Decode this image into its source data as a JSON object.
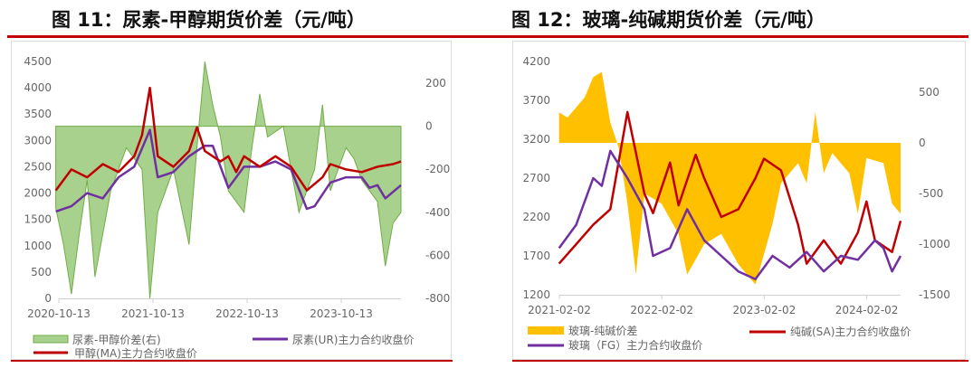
{
  "figures": [
    {
      "title": "图 11：尿素-甲醇期货价差（元/吨）"
    },
    {
      "title": "图 12：玻璃-纯碱期货价差（元/吨）"
    }
  ],
  "colors": {
    "accent_rule": "#c00000",
    "green_fill": "#a9d18e",
    "green_line": "#70ad47",
    "yellow": "#ffc000",
    "red": "#c00000",
    "purple": "#7030a0"
  },
  "chart_data": [
    {
      "type": "line",
      "title": "图 11：尿素-甲醇期货价差（元/吨）",
      "xlim": [
        "2020-10-13",
        "2024-06"
      ],
      "x_ticks": [
        "2020-10-13",
        "2021-10-13",
        "2022-10-13",
        "2023-10-13"
      ],
      "ylim_left": [
        0,
        4500
      ],
      "y_ticks_left": [
        "0",
        "500",
        "1000",
        "1500",
        "2000",
        "2500",
        "3000",
        "3500",
        "4000",
        "4500"
      ],
      "ylim_right": [
        -800,
        200
      ],
      "y_ticks_right": [
        "-800",
        "-600",
        "-400",
        "-200",
        "0",
        "200"
      ],
      "grid": false,
      "legend_position": "bottom",
      "series": [
        {
          "name": "尿素-甲醇价差(右)",
          "type": "area",
          "axis": "right",
          "color": "#a9d18e",
          "points": [
            [
              "2020-10",
              -380
            ],
            [
              "2020-11",
              -550
            ],
            [
              "2020-12",
              -780
            ],
            [
              "2021-01",
              -500
            ],
            [
              "2021-02",
              -250
            ],
            [
              "2021-03",
              -700
            ],
            [
              "2021-05",
              -300
            ],
            [
              "2021-07",
              -100
            ],
            [
              "2021-09",
              -200
            ],
            [
              "2021-10",
              -800
            ],
            [
              "2021-11",
              -400
            ],
            [
              "2022-01",
              -200
            ],
            [
              "2022-03",
              -550
            ],
            [
              "2022-04",
              -100
            ],
            [
              "2022-05",
              300
            ],
            [
              "2022-06",
              100
            ],
            [
              "2022-07",
              -50
            ],
            [
              "2022-08",
              -300
            ],
            [
              "2022-10",
              -400
            ],
            [
              "2022-11",
              -100
            ],
            [
              "2022-12",
              150
            ],
            [
              "2023-01",
              -50
            ],
            [
              "2023-03",
              0
            ],
            [
              "2023-04",
              -200
            ],
            [
              "2023-05",
              -400
            ],
            [
              "2023-07",
              -200
            ],
            [
              "2023-08",
              100
            ],
            [
              "2023-09",
              -300
            ],
            [
              "2023-11",
              -100
            ],
            [
              "2023-12",
              -150
            ],
            [
              "2024-01",
              -250
            ],
            [
              "2024-03",
              -350
            ],
            [
              "2024-04",
              -650
            ],
            [
              "2024-05",
              -450
            ],
            [
              "2024-06",
              -400
            ]
          ]
        },
        {
          "name": "尿素(UR)主力合约收盘价",
          "type": "line",
          "axis": "left",
          "color": "#7030a0",
          "points": [
            [
              "2020-10",
              1650
            ],
            [
              "2020-12",
              1750
            ],
            [
              "2021-02",
              2000
            ],
            [
              "2021-04",
              1900
            ],
            [
              "2021-06",
              2300
            ],
            [
              "2021-08",
              2500
            ],
            [
              "2021-10",
              3200
            ],
            [
              "2021-11",
              2300
            ],
            [
              "2022-01",
              2400
            ],
            [
              "2022-03",
              2700
            ],
            [
              "2022-05",
              2900
            ],
            [
              "2022-06",
              2900
            ],
            [
              "2022-08",
              2100
            ],
            [
              "2022-10",
              2500
            ],
            [
              "2022-12",
              2500
            ],
            [
              "2023-02",
              2600
            ],
            [
              "2023-04",
              2450
            ],
            [
              "2023-06",
              1700
            ],
            [
              "2023-07",
              1750
            ],
            [
              "2023-09",
              2200
            ],
            [
              "2023-11",
              2300
            ],
            [
              "2024-01",
              2300
            ],
            [
              "2024-02",
              2100
            ],
            [
              "2024-03",
              2150
            ],
            [
              "2024-04",
              1900
            ],
            [
              "2024-06",
              2150
            ]
          ]
        },
        {
          "name": "甲醇(MA)主力合约收盘价",
          "type": "line",
          "axis": "left",
          "color": "#c00000",
          "points": [
            [
              "2020-10",
              2050
            ],
            [
              "2020-12",
              2450
            ],
            [
              "2021-02",
              2300
            ],
            [
              "2021-04",
              2550
            ],
            [
              "2021-06",
              2400
            ],
            [
              "2021-08",
              2700
            ],
            [
              "2021-09",
              3100
            ],
            [
              "2021-10",
              4000
            ],
            [
              "2021-11",
              2700
            ],
            [
              "2022-01",
              2500
            ],
            [
              "2022-03",
              2800
            ],
            [
              "2022-04",
              3250
            ],
            [
              "2022-05",
              2800
            ],
            [
              "2022-07",
              2600
            ],
            [
              "2022-08",
              2700
            ],
            [
              "2022-09",
              2400
            ],
            [
              "2022-10",
              2700
            ],
            [
              "2022-12",
              2500
            ],
            [
              "2023-02",
              2700
            ],
            [
              "2023-04",
              2500
            ],
            [
              "2023-06",
              2050
            ],
            [
              "2023-08",
              2300
            ],
            [
              "2023-09",
              2550
            ],
            [
              "2023-11",
              2450
            ],
            [
              "2024-01",
              2400
            ],
            [
              "2024-03",
              2500
            ],
            [
              "2024-05",
              2550
            ],
            [
              "2024-06",
              2600
            ]
          ]
        }
      ]
    },
    {
      "type": "line",
      "title": "图 12：玻璃-纯碱期货价差（元/吨）",
      "xlim": [
        "2021-02-02",
        "2024-06"
      ],
      "x_ticks": [
        "2021-02-02",
        "2022-02-02",
        "2023-02-02",
        "2024-02-02"
      ],
      "ylim_left": [
        1200,
        4200
      ],
      "y_ticks_left": [
        "1200",
        "1700",
        "2200",
        "2700",
        "3200",
        "3700",
        "4200"
      ],
      "ylim_right": [
        -1500,
        1000
      ],
      "y_ticks_right": [
        "-1500",
        "-1000",
        "-500",
        "0",
        "500"
      ],
      "grid": false,
      "legend_position": "bottom",
      "series": [
        {
          "name": "玻璃-纯碱价差",
          "type": "area",
          "axis": "right",
          "color": "#ffc000",
          "points": [
            [
              "2021-02",
              300
            ],
            [
              "2021-03",
              250
            ],
            [
              "2021-05",
              450
            ],
            [
              "2021-06",
              650
            ],
            [
              "2021-07",
              700
            ],
            [
              "2021-08",
              200
            ],
            [
              "2021-09",
              -50
            ],
            [
              "2021-10",
              -600
            ],
            [
              "2021-11",
              -1300
            ],
            [
              "2021-12",
              -500
            ],
            [
              "2022-02",
              -600
            ],
            [
              "2022-04",
              -900
            ],
            [
              "2022-05",
              -1300
            ],
            [
              "2022-07",
              -1000
            ],
            [
              "2022-09",
              -900
            ],
            [
              "2022-11",
              -1200
            ],
            [
              "2023-01",
              -1400
            ],
            [
              "2023-03",
              -800
            ],
            [
              "2023-04",
              -400
            ],
            [
              "2023-06",
              -200
            ],
            [
              "2023-07",
              -400
            ],
            [
              "2023-08",
              300
            ],
            [
              "2023-09",
              -300
            ],
            [
              "2023-10",
              -100
            ],
            [
              "2023-12",
              -300
            ],
            [
              "2024-01",
              -700
            ],
            [
              "2024-02",
              -150
            ],
            [
              "2024-04",
              -200
            ],
            [
              "2024-05",
              -600
            ],
            [
              "2024-06",
              -700
            ]
          ]
        },
        {
          "name": "纯碱(SA)主力合约收盘价",
          "type": "line",
          "axis": "left",
          "color": "#c00000",
          "points": [
            [
              "2021-02",
              1600
            ],
            [
              "2021-04",
              1850
            ],
            [
              "2021-06",
              2100
            ],
            [
              "2021-08",
              2300
            ],
            [
              "2021-10",
              3550
            ],
            [
              "2021-12",
              2500
            ],
            [
              "2022-01",
              2250
            ],
            [
              "2022-03",
              2900
            ],
            [
              "2022-04",
              2350
            ],
            [
              "2022-06",
              3000
            ],
            [
              "2022-07",
              2700
            ],
            [
              "2022-09",
              2200
            ],
            [
              "2022-11",
              2300
            ],
            [
              "2023-01",
              2700
            ],
            [
              "2023-02",
              2950
            ],
            [
              "2023-04",
              2800
            ],
            [
              "2023-06",
              2100
            ],
            [
              "2023-07",
              1600
            ],
            [
              "2023-09",
              1900
            ],
            [
              "2023-11",
              1600
            ],
            [
              "2024-01",
              2000
            ],
            [
              "2024-02",
              2400
            ],
            [
              "2024-03",
              1900
            ],
            [
              "2024-05",
              1750
            ],
            [
              "2024-06",
              2150
            ]
          ]
        },
        {
          "name": "玻璃（FG）主力合约收盘价",
          "type": "line",
          "axis": "left",
          "color": "#7030a0",
          "points": [
            [
              "2021-02",
              1800
            ],
            [
              "2021-04",
              2100
            ],
            [
              "2021-06",
              2700
            ],
            [
              "2021-07",
              2600
            ],
            [
              "2021-08",
              3050
            ],
            [
              "2021-10",
              2700
            ],
            [
              "2021-12",
              2300
            ],
            [
              "2022-01",
              1700
            ],
            [
              "2022-03",
              1800
            ],
            [
              "2022-05",
              2300
            ],
            [
              "2022-07",
              1900
            ],
            [
              "2022-09",
              1700
            ],
            [
              "2022-11",
              1500
            ],
            [
              "2023-01",
              1400
            ],
            [
              "2023-03",
              1700
            ],
            [
              "2023-05",
              1550
            ],
            [
              "2023-07",
              1750
            ],
            [
              "2023-09",
              1500
            ],
            [
              "2023-11",
              1700
            ],
            [
              "2024-01",
              1650
            ],
            [
              "2024-03",
              1900
            ],
            [
              "2024-04",
              1800
            ],
            [
              "2024-05",
              1500
            ],
            [
              "2024-06",
              1700
            ]
          ]
        }
      ]
    }
  ]
}
